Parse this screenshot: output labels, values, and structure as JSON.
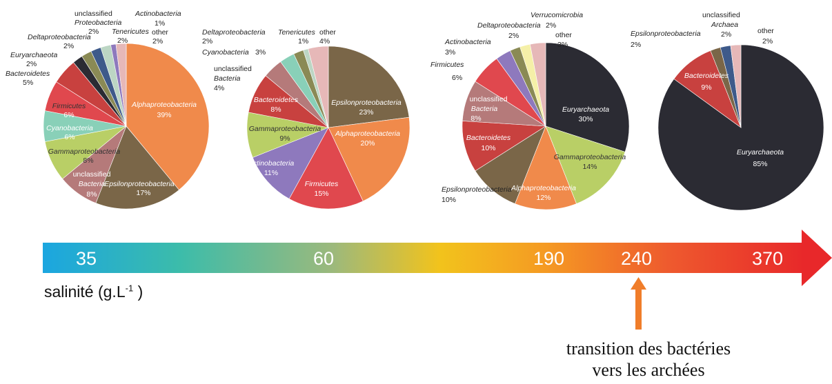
{
  "colors": {
    "Alphaproteobacteria": "#f08a4b",
    "Epsilonproteobacteria": "#7a6648",
    "unclassified Bacteria": "#b57a7a",
    "Gammaproteobacteria": "#b9cf66",
    "Cyanobacteria": "#89d0b8",
    "Firmicutes": "#e0484e",
    "Bacteroidetes": "#c8413f",
    "Euryarchaeota": "#2b2b33",
    "Deltaproteobacteria": "#8a8a55",
    "unclassified Proteobacteria": "#3e5a8a",
    "Tenericutes": "#bcd6c4",
    "Actinobacteria": "#8e79bd",
    "Verrucomicrobia": "#f5f0a8",
    "unclassified Archaea": "#3e5a8a",
    "other": "#e6b8b8"
  },
  "chart_data": [
    {
      "type": "pie",
      "slices": [
        {
          "name": "Alphaproteobacteria",
          "value": 39
        },
        {
          "name": "Epsilonproteobacteria",
          "value": 17
        },
        {
          "name": "unclassified Bacteria",
          "value": 8
        },
        {
          "name": "Gammaproteobacteria",
          "value": 8
        },
        {
          "name": "Cyanobacteria",
          "value": 6
        },
        {
          "name": "Firmicutes",
          "value": 6
        },
        {
          "name": "Bacteroidetes",
          "value": 5
        },
        {
          "name": "Euryarchaeota",
          "value": 2
        },
        {
          "name": "Deltaproteobacteria",
          "value": 2
        },
        {
          "name": "unclassified Proteobacteria",
          "value": 2
        },
        {
          "name": "Tenericutes",
          "value": 2
        },
        {
          "name": "Actinobacteria",
          "value": 1
        },
        {
          "name": "other",
          "value": 2
        }
      ]
    },
    {
      "type": "pie",
      "slices": [
        {
          "name": "Epsilonproteobacteria",
          "value": 23
        },
        {
          "name": "Alphaproteobacteria",
          "value": 20
        },
        {
          "name": "Firmicutes",
          "value": 15
        },
        {
          "name": "Actinobacteria",
          "value": 11
        },
        {
          "name": "Gammaproteobacteria",
          "value": 9
        },
        {
          "name": "Bacteroidetes",
          "value": 8
        },
        {
          "name": "unclassified Bacteria",
          "value": 4
        },
        {
          "name": "Cyanobacteria",
          "value": 3
        },
        {
          "name": "Deltaproteobacteria",
          "value": 2
        },
        {
          "name": "Tenericutes",
          "value": 1
        },
        {
          "name": "other",
          "value": 4
        }
      ]
    },
    {
      "type": "pie",
      "slices": [
        {
          "name": "Euryarchaeota",
          "value": 30
        },
        {
          "name": "Gammaproteobacteria",
          "value": 14
        },
        {
          "name": "Alphaproteobacteria",
          "value": 12
        },
        {
          "name": "Epsilonproteobacteria",
          "value": 10
        },
        {
          "name": "Bacteroidetes",
          "value": 10
        },
        {
          "name": "unclassified Bacteria",
          "value": 8
        },
        {
          "name": "Firmicutes",
          "value": 6
        },
        {
          "name": "Actinobacteria",
          "value": 3
        },
        {
          "name": "Deltaproteobacteria",
          "value": 2
        },
        {
          "name": "Verrucomicrobia",
          "value": 2
        },
        {
          "name": "other",
          "value": 3
        }
      ]
    },
    {
      "type": "pie",
      "slices": [
        {
          "name": "Euryarchaeota",
          "value": 85
        },
        {
          "name": "Bacteroidetes",
          "value": 9
        },
        {
          "name": "Epsilonproteobacteria",
          "value": 2
        },
        {
          "name": "unclassified Archaea",
          "value": 2
        },
        {
          "name": "other",
          "value": 2
        }
      ]
    }
  ],
  "scale": {
    "values": [
      "35",
      "60",
      "190",
      "240",
      "370"
    ],
    "axis_label": "salinité (g.L",
    "axis_label_sup": "-1",
    "axis_label_end": " )",
    "gradient": [
      "#1ba6e0",
      "#3cbcaa",
      "#9cb97c",
      "#f2c31c",
      "#f59a23",
      "#ee5a2e",
      "#e8282a"
    ]
  },
  "annotation": {
    "line1": "transition des bactéries",
    "line2": "vers les archées",
    "arrow_color": "#f07d2a"
  }
}
